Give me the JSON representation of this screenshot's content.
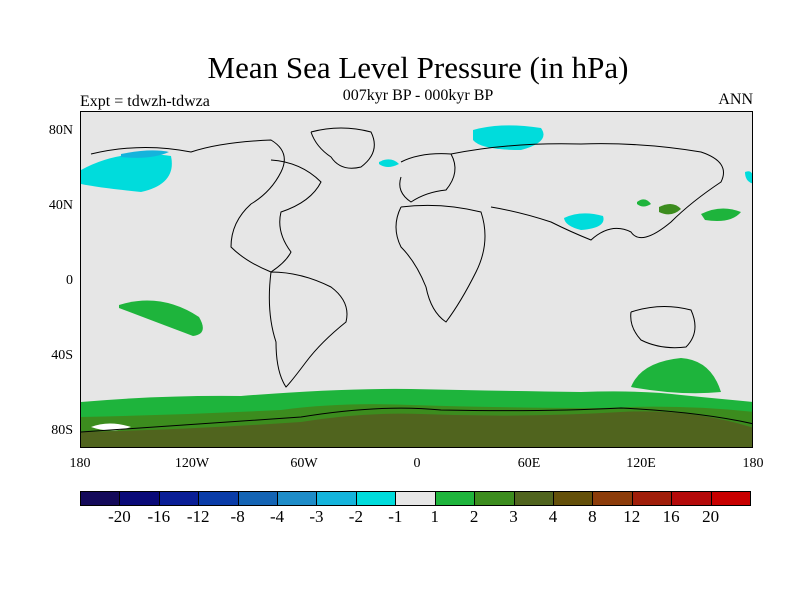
{
  "header": {
    "title": "Mean Sea Level Pressure (in hPa)",
    "subtitle": "007kyr BP - 000kyr BP",
    "left_label": "Expt = tdwzh-tdwza",
    "right_label": "ANN"
  },
  "map": {
    "y_ticks": [
      "80N",
      "40N",
      "0",
      "40S",
      "80S"
    ],
    "x_ticks": [
      "180",
      "120W",
      "60W",
      "0",
      "60E",
      "120E",
      "180"
    ],
    "background_color": "#e6e6e6",
    "coastline_color": "#000000"
  },
  "colorbar": {
    "labels": [
      "-20",
      "-16",
      "-12",
      "-8",
      "-4",
      "-3",
      "-2",
      "-1",
      "1",
      "2",
      "3",
      "4",
      "8",
      "12",
      "16",
      "20"
    ],
    "colors": [
      "#140a5a",
      "#0a0a78",
      "#0a1e96",
      "#0a3ca8",
      "#1464b4",
      "#1e8cc8",
      "#14b4dc",
      "#00dcdc",
      "#e6e6e6",
      "#1eb43c",
      "#3c8c1e",
      "#50641e",
      "#64500a",
      "#8c3c0a",
      "#a01e0a",
      "#b40a0a",
      "#c80000"
    ]
  }
}
